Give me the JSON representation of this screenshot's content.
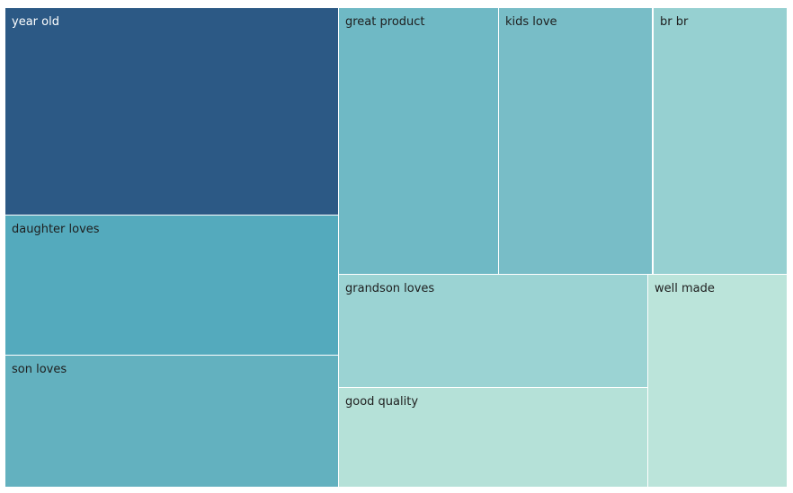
{
  "chart_data": {
    "type": "treemap",
    "tiles": [
      {
        "label": "year old",
        "color": "#2c5985",
        "text_color": "#ffffff"
      },
      {
        "label": "daughter loves",
        "color": "#54aabd",
        "text_color": "#1e1e1e"
      },
      {
        "label": "son loves",
        "color": "#63b1bf",
        "text_color": "#1e1e1e"
      },
      {
        "label": "great product",
        "color": "#6fb9c5",
        "text_color": "#1e1e1e"
      },
      {
        "label": "kids love",
        "color": "#78bdc7",
        "text_color": "#1e1e1e"
      },
      {
        "label": "br br",
        "color": "#96d0d1",
        "text_color": "#1e1e1e"
      },
      {
        "label": "grandson loves",
        "color": "#9bd3d3",
        "text_color": "#1e1e1e"
      },
      {
        "label": "good quality",
        "color": "#b5e1d8",
        "text_color": "#1e1e1e"
      },
      {
        "label": "well made",
        "color": "#bbe4da",
        "text_color": "#1e1e1e"
      }
    ]
  }
}
